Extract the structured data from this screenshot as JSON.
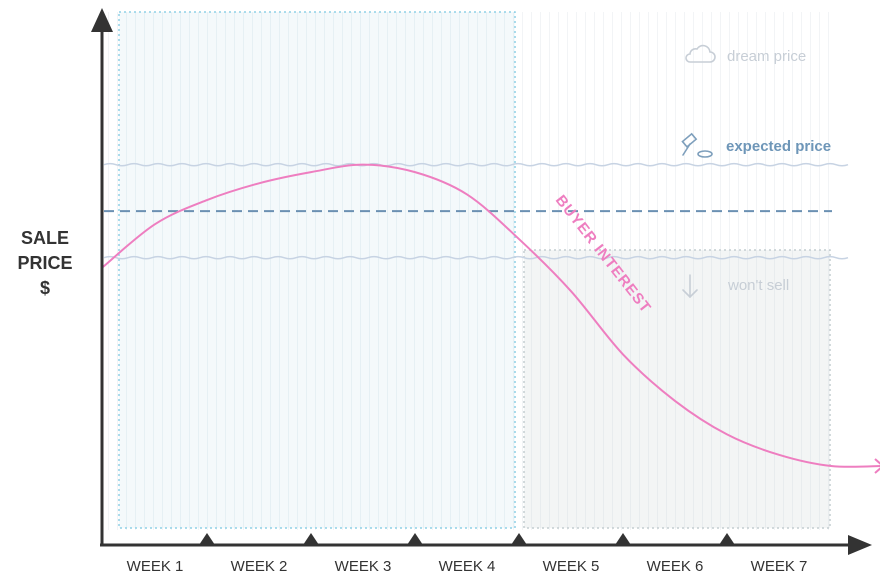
{
  "chart_data": {
    "type": "line",
    "ylabel": [
      "SALE",
      "PRICE",
      "$"
    ],
    "categories": [
      "WEEK 1",
      "WEEK 2",
      "WEEK 3",
      "WEEK 4",
      "WEEK 5",
      "WEEK 6",
      "WEEK 7"
    ],
    "reference_lines": {
      "dream_price": "dream price",
      "expected_price": "expected price",
      "wont_sell": "won't sell"
    },
    "series": [
      {
        "name": "BUYER INTEREST",
        "points": [
          [
            0.0,
            0.57
          ],
          [
            0.5,
            0.8
          ],
          [
            1.0,
            0.93
          ],
          [
            1.5,
            1.02
          ],
          [
            2.0,
            1.08
          ],
          [
            2.5,
            1.12
          ],
          [
            3.0,
            1.08
          ],
          [
            3.5,
            0.96
          ],
          [
            4.0,
            0.72
          ],
          [
            4.5,
            0.44
          ],
          [
            5.0,
            0.1
          ],
          [
            5.5,
            -0.15
          ],
          [
            6.0,
            -0.33
          ],
          [
            6.5,
            -0.44
          ],
          [
            7.0,
            -0.5
          ],
          [
            7.5,
            -0.5
          ]
        ]
      }
    ],
    "level_values": {
      "dream": 1.12,
      "expected": 0.87,
      "wont_sell": 0.62
    },
    "shaded_regions": [
      {
        "name": "early-interest-window",
        "x": [
          0,
          4
        ]
      },
      {
        "name": "wont-sell-region",
        "x": [
          4,
          7.5
        ]
      }
    ],
    "colors": {
      "curve": "#ee7ec0",
      "expected_line": "#6b90b2",
      "wavy_lines": "#c7d3e3",
      "region_left_fill": "#f4f9fb",
      "region_left_border": "#8fd0e6",
      "region_right_fill": "#f3f5f5",
      "region_right_border": "#c4cdd1",
      "axes": "#333333",
      "label_muted": "#c7ced6",
      "label_expected": "#6e96b8"
    },
    "icons": [
      "cloud-icon",
      "gavel-icon",
      "down-arrow-icon"
    ]
  }
}
